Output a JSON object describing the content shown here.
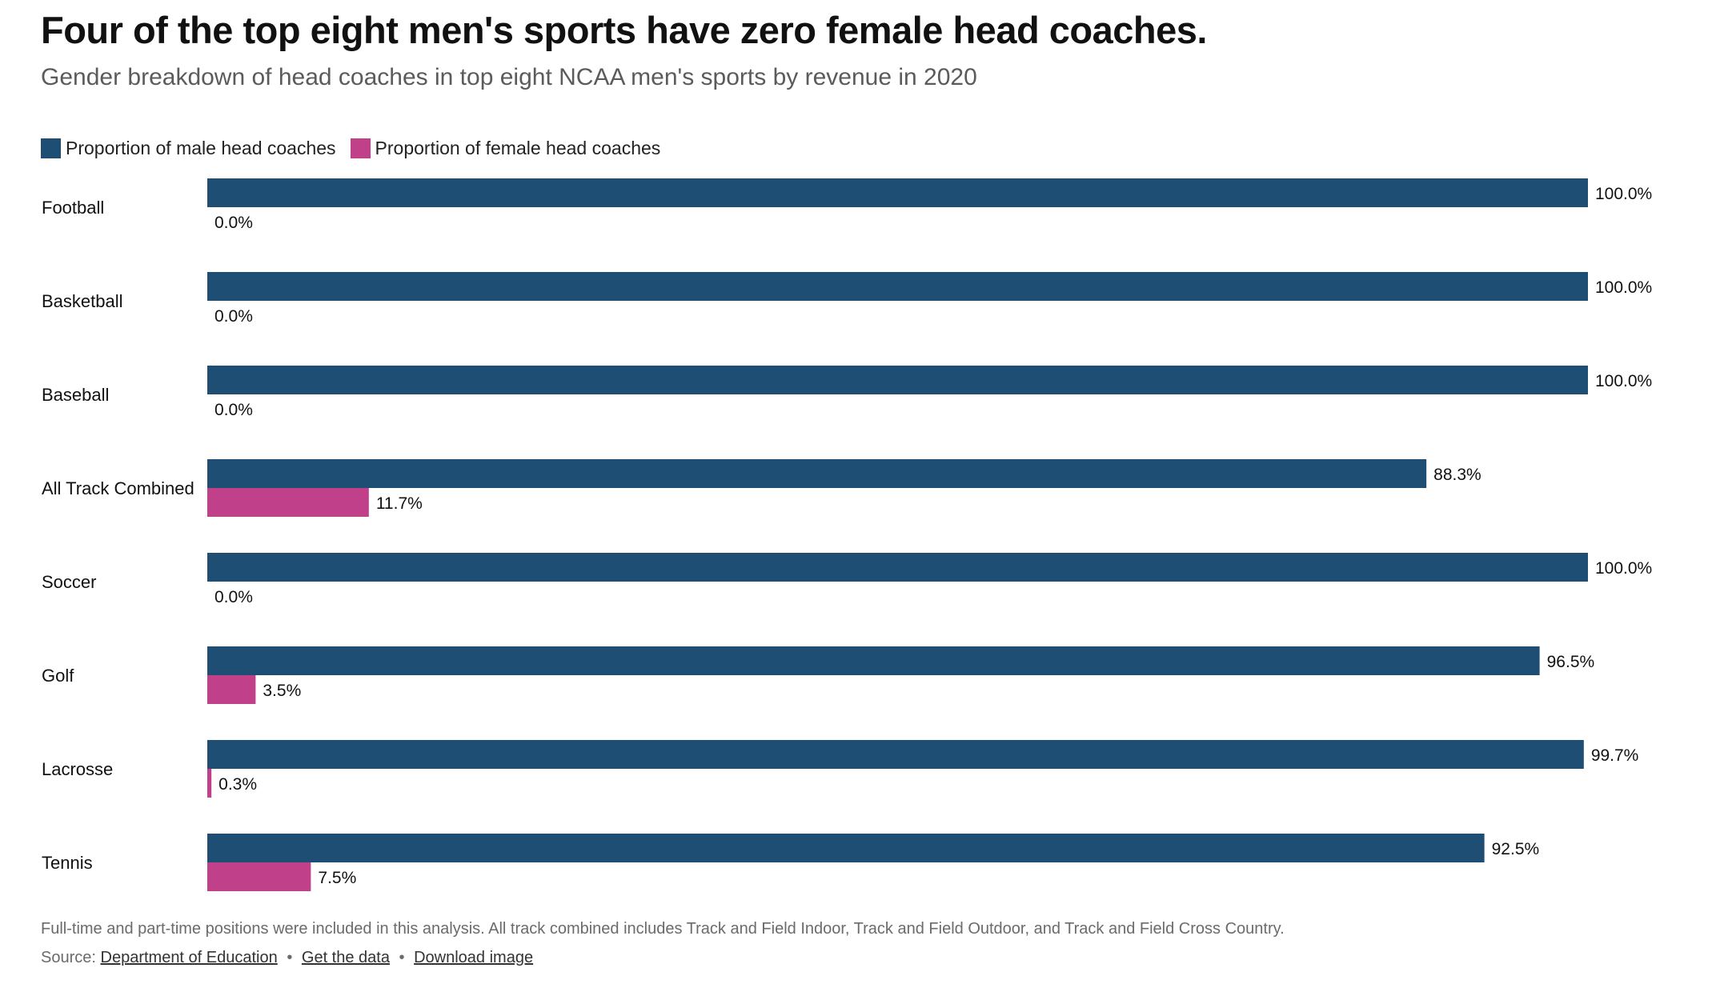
{
  "title": "Four of the top eight men's sports have zero female head coaches.",
  "subtitle": "Gender breakdown of head coaches in top eight NCAA men's sports by revenue in 2020",
  "colors": {
    "male": "#1f4e74",
    "female": "#c0408a"
  },
  "legend": {
    "male_label": "Proportion of male head coaches",
    "female_label": "Proportion of female head coaches"
  },
  "chart_data": {
    "type": "bar",
    "orientation": "horizontal",
    "categories": [
      "Football",
      "Basketball",
      "Baseball",
      "All Track Combined",
      "Soccer",
      "Golf",
      "Lacrosse",
      "Tennis"
    ],
    "series": [
      {
        "name": "Proportion of male head coaches",
        "values": [
          100.0,
          100.0,
          100.0,
          88.3,
          100.0,
          96.5,
          99.7,
          92.5
        ]
      },
      {
        "name": "Proportion of female head coaches",
        "values": [
          0.0,
          0.0,
          0.0,
          11.7,
          0.0,
          3.5,
          0.3,
          7.5
        ]
      }
    ],
    "value_suffix": "%",
    "xlim": [
      0,
      100
    ],
    "grid": false,
    "legend_position": "top-left"
  },
  "footnote": "Full-time and part-time positions were included in this analysis. All track combined includes Track and Field Indoor, Track and Field Outdoor, and Track and Field Cross Country.",
  "source": {
    "prefix": "Source:",
    "source_link": "Department of Education",
    "separator": "•",
    "data_link": "Get the data",
    "image_link": "Download image"
  }
}
